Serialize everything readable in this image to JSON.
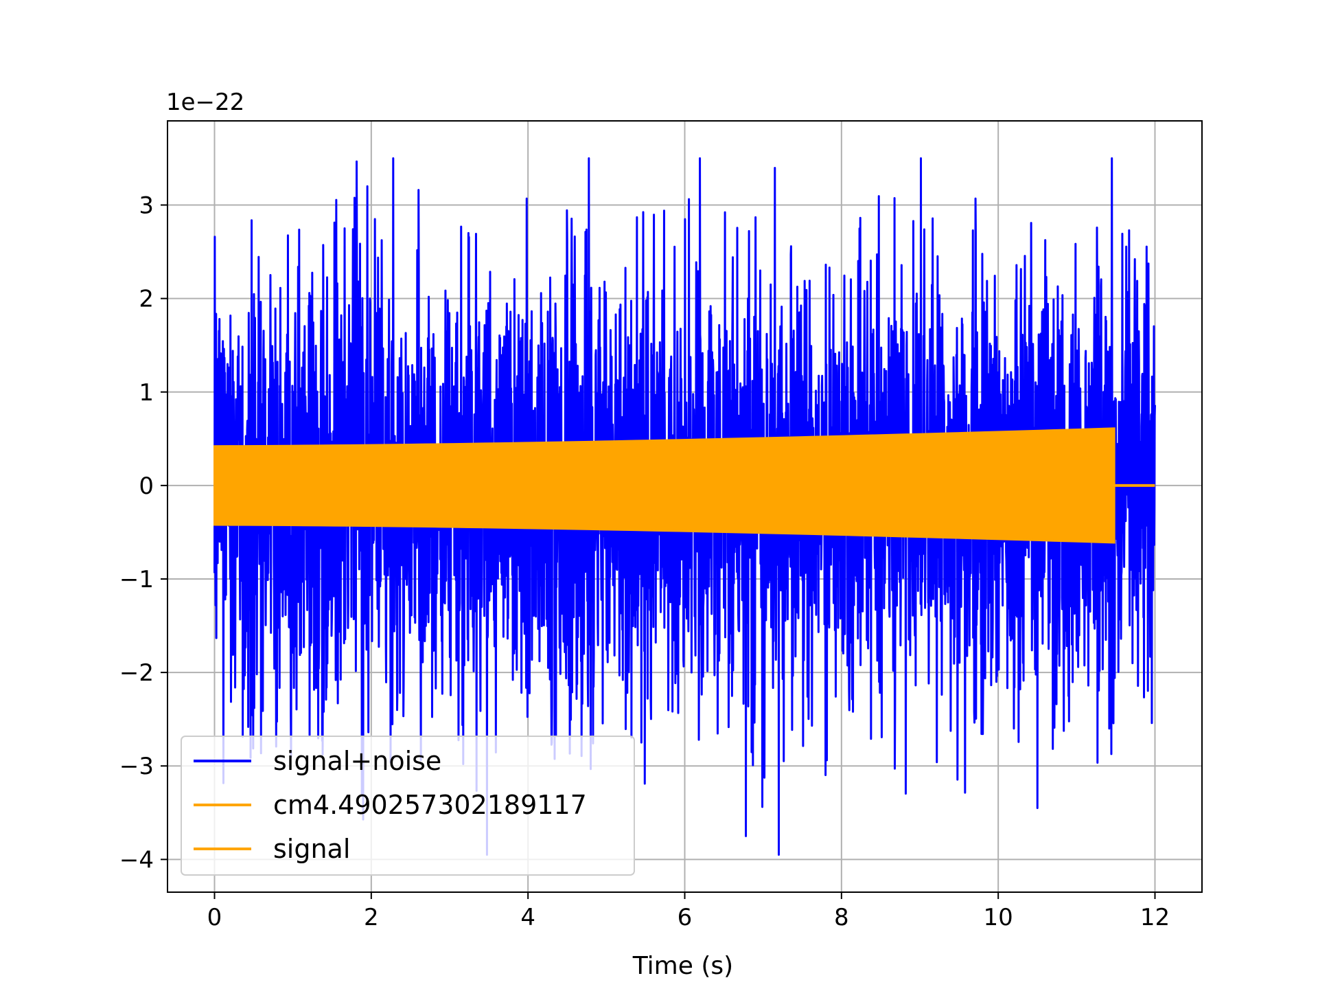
{
  "chart_data": {
    "type": "line",
    "title": "",
    "xlabel": "Time (s)",
    "ylabel": "",
    "offset_text": "1e−22",
    "xlim": [
      -0.6,
      12.6
    ],
    "ylim": [
      -4.35,
      3.9
    ],
    "x_ticks": [
      0,
      2,
      4,
      6,
      8,
      10,
      12
    ],
    "x_tick_labels": [
      "0",
      "2",
      "4",
      "6",
      "8",
      "10",
      "12"
    ],
    "y_ticks": [
      -4,
      -3,
      -2,
      -1,
      0,
      1,
      2,
      3
    ],
    "y_tick_labels": [
      "−4",
      "−3",
      "−2",
      "−1",
      "0",
      "1",
      "2",
      "3"
    ],
    "grid": true,
    "legend_position": "lower-left",
    "series": [
      {
        "name": "signal+noise",
        "color": "#0000ff",
        "x_range": [
          0,
          12
        ],
        "typical_amplitude": 1.4,
        "max_value": 3.5,
        "min_value": -3.95
      },
      {
        "name": "cm4.490257302189117",
        "color": "#ffa500",
        "x_range": [
          0,
          11.48
        ],
        "amplitude_start": 0.42,
        "amplitude_end": 0.61,
        "value_after_end": 0
      },
      {
        "name": "signal",
        "color": "#ffa500",
        "x_range": [
          0,
          11.48
        ],
        "amplitude_start": 0.42,
        "amplitude_end": 0.61,
        "value_after_end": 0
      }
    ]
  }
}
